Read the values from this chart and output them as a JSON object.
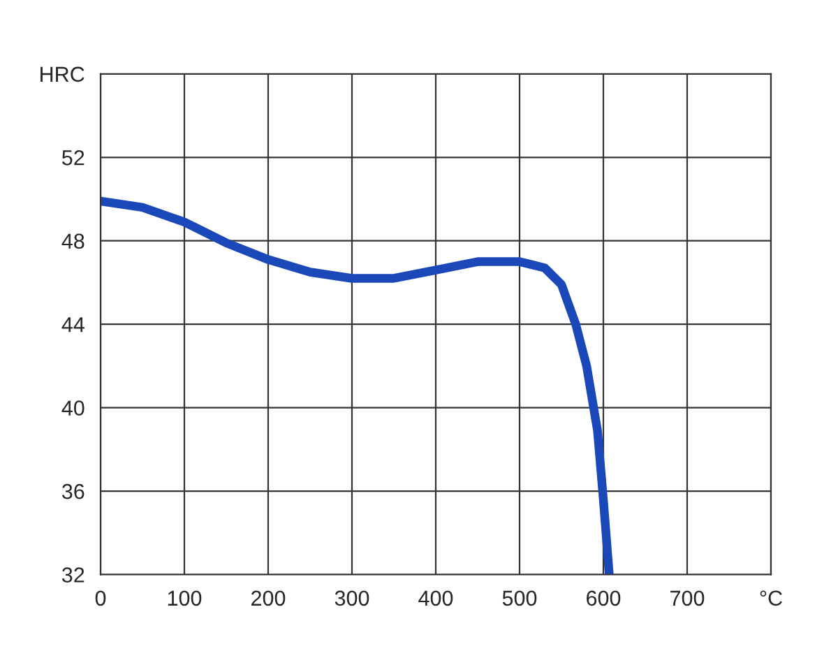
{
  "chart_data": {
    "type": "line",
    "x": [
      0,
      50,
      100,
      150,
      200,
      250,
      300,
      350,
      400,
      450,
      500,
      530,
      550,
      567,
      580,
      593,
      600,
      607
    ],
    "series": [
      {
        "color": "#1a48b8",
        "values": [
          49.9,
          49.6,
          48.9,
          47.9,
          47.1,
          46.5,
          46.2,
          46.2,
          46.6,
          47.0,
          47.0,
          46.7,
          45.9,
          44.0,
          42.0,
          38.9,
          35.6,
          32.0
        ]
      }
    ],
    "xlim": [
      0,
      800
    ],
    "ylim": [
      32,
      56
    ],
    "xticks": [
      0,
      100,
      200,
      300,
      400,
      500,
      600,
      700,
      {
        "value": 800,
        "label": "°C"
      }
    ],
    "yticks": [
      32,
      36,
      40,
      44,
      48,
      52,
      {
        "value": 56,
        "label": "HRC"
      }
    ],
    "grid": true,
    "marker": "none",
    "line_style": "solid"
  }
}
